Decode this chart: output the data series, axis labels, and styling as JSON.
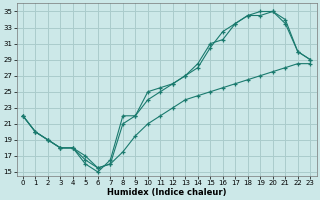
{
  "xlabel": "Humidex (Indice chaleur)",
  "background_color": "#cce8e8",
  "grid_color": "#aacccc",
  "line_color": "#1a7a6e",
  "xlim": [
    -0.5,
    23.5
  ],
  "ylim": [
    14.5,
    36
  ],
  "xticks": [
    0,
    1,
    2,
    3,
    4,
    5,
    6,
    7,
    8,
    9,
    10,
    11,
    12,
    13,
    14,
    15,
    16,
    17,
    18,
    19,
    20,
    21,
    22,
    23
  ],
  "yticks": [
    15,
    17,
    19,
    21,
    23,
    25,
    27,
    29,
    31,
    33,
    35
  ],
  "line1_x": [
    0,
    1,
    2,
    3,
    4,
    5,
    6,
    7,
    8,
    9,
    10,
    11,
    12,
    13,
    14,
    15,
    16,
    17,
    18,
    19,
    20,
    21,
    22,
    23
  ],
  "line1_y": [
    22,
    20,
    19,
    18,
    18,
    16,
    15,
    16.5,
    22,
    22,
    25,
    25.5,
    26,
    27,
    28.5,
    31,
    31.5,
    33.5,
    34.5,
    35,
    35,
    34,
    30,
    29
  ],
  "line2_x": [
    0,
    1,
    2,
    3,
    4,
    5,
    6,
    7,
    8,
    9,
    10,
    11,
    12,
    13,
    14,
    15,
    16,
    17,
    18,
    19,
    20,
    21,
    22,
    23
  ],
  "line2_y": [
    22,
    20,
    19,
    18,
    18,
    16.5,
    15.5,
    16,
    21,
    22,
    24,
    25,
    26,
    27,
    28,
    30.5,
    32.5,
    33.5,
    34.5,
    34.5,
    35,
    33.5,
    30,
    29
  ],
  "line3_x": [
    0,
    1,
    2,
    3,
    4,
    5,
    6,
    7,
    8,
    9,
    10,
    11,
    12,
    13,
    14,
    15,
    16,
    17,
    18,
    19,
    20,
    21,
    22,
    23
  ],
  "line3_y": [
    22,
    20,
    19,
    18,
    18,
    17,
    15.5,
    16,
    17.5,
    19.5,
    21,
    22,
    23,
    24,
    24.5,
    25,
    25.5,
    26,
    26.5,
    27,
    27.5,
    28,
    28.5,
    28.5
  ]
}
